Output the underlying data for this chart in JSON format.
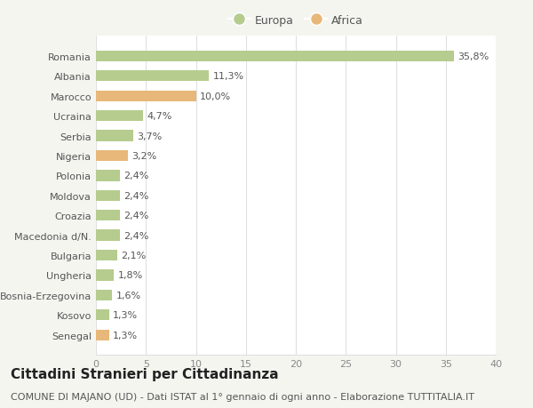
{
  "countries": [
    "Romania",
    "Albania",
    "Marocco",
    "Ucraina",
    "Serbia",
    "Nigeria",
    "Polonia",
    "Moldova",
    "Croazia",
    "Macedonia d/N.",
    "Bulgaria",
    "Ungheria",
    "Bosnia-Erzegovina",
    "Kosovo",
    "Senegal"
  ],
  "values": [
    35.8,
    11.3,
    10.0,
    4.7,
    3.7,
    3.2,
    2.4,
    2.4,
    2.4,
    2.4,
    2.1,
    1.8,
    1.6,
    1.3,
    1.3
  ],
  "labels": [
    "35,8%",
    "11,3%",
    "10,0%",
    "4,7%",
    "3,7%",
    "3,2%",
    "2,4%",
    "2,4%",
    "2,4%",
    "2,4%",
    "2,1%",
    "1,8%",
    "1,6%",
    "1,3%",
    "1,3%"
  ],
  "continent": [
    "Europa",
    "Europa",
    "Africa",
    "Europa",
    "Europa",
    "Africa",
    "Europa",
    "Europa",
    "Europa",
    "Europa",
    "Europa",
    "Europa",
    "Europa",
    "Europa",
    "Africa"
  ],
  "color_europa": "#b5cc8e",
  "color_africa": "#e8b87a",
  "background_color": "#f5f5f0",
  "plot_bg_color": "#ffffff",
  "grid_color": "#e0e0e0",
  "title": "Cittadini Stranieri per Cittadinanza",
  "subtitle": "COMUNE DI MAJANO (UD) - Dati ISTAT al 1° gennaio di ogni anno - Elaborazione TUTTITALIA.IT",
  "legend_europa": "Europa",
  "legend_africa": "Africa",
  "xlim": [
    0,
    40
  ],
  "xticks": [
    0,
    5,
    10,
    15,
    20,
    25,
    30,
    35,
    40
  ],
  "title_fontsize": 11,
  "subtitle_fontsize": 8,
  "label_fontsize": 8,
  "tick_fontsize": 8,
  "legend_fontsize": 9,
  "bar_height": 0.55
}
